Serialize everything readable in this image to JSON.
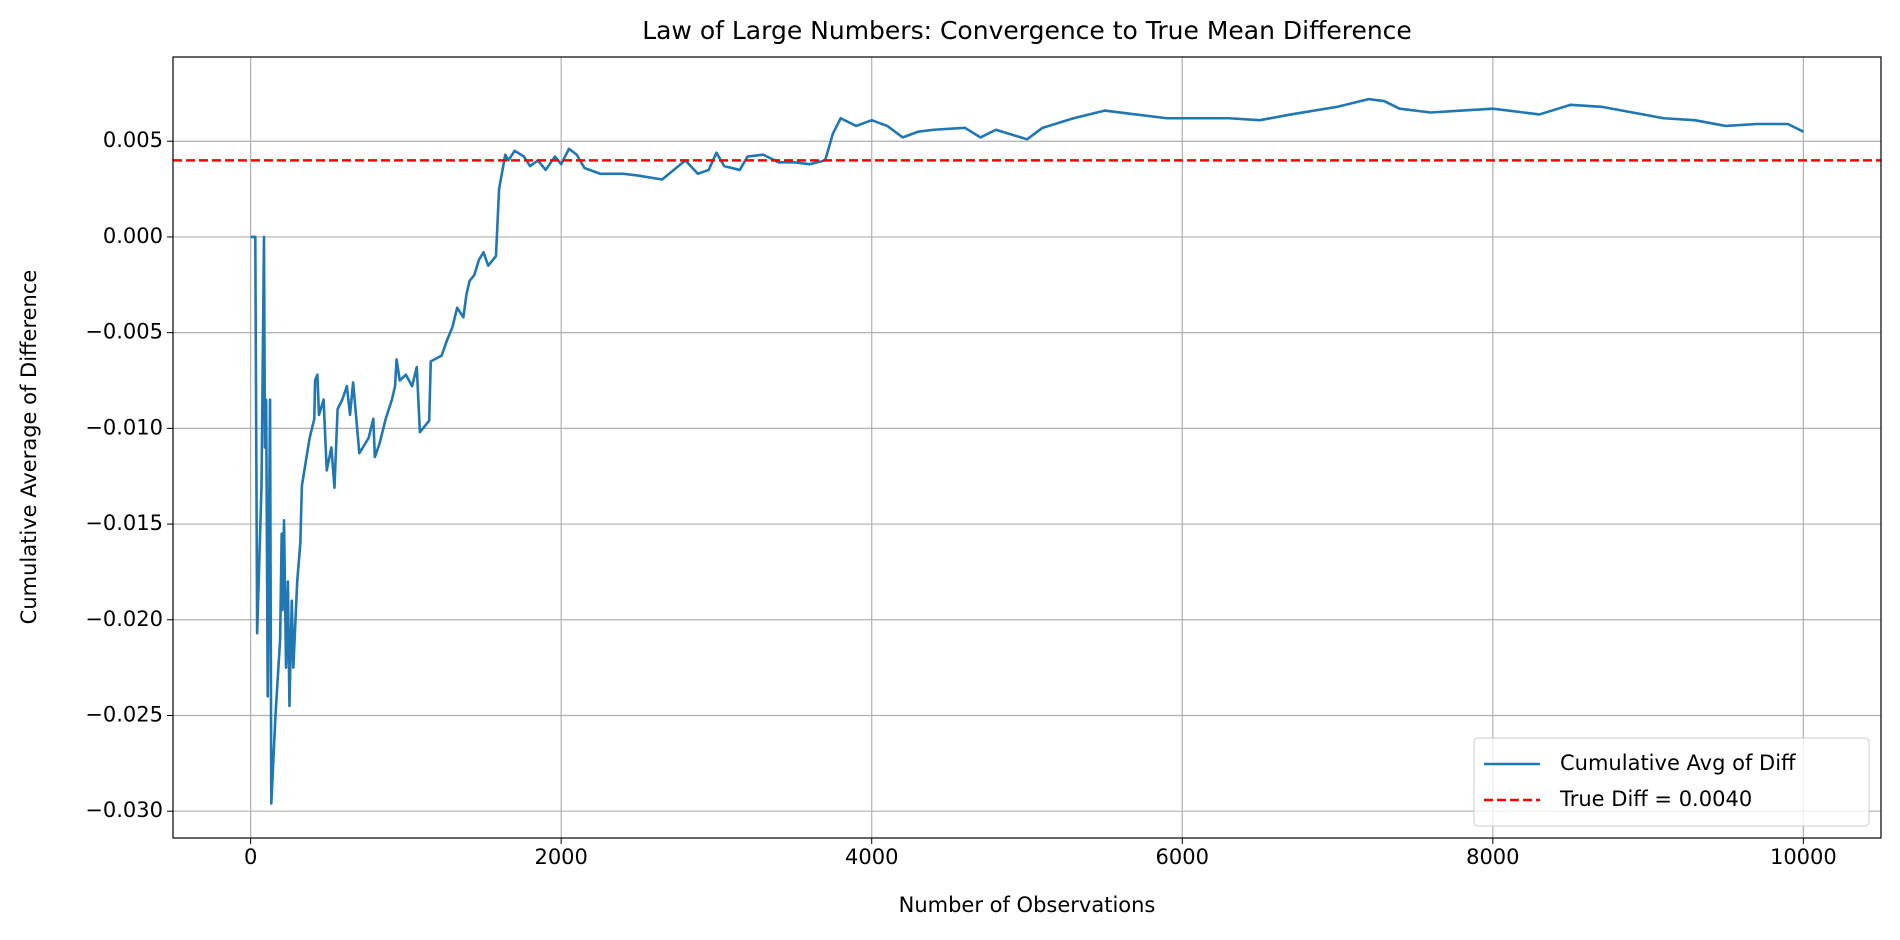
{
  "chart_data": {
    "type": "line",
    "title": "Law of Large Numbers: Convergence to True Mean Difference",
    "xlabel": "Number of Observations",
    "ylabel": "Cumulative Average of Difference",
    "xlim": [
      -500,
      10500
    ],
    "ylim": [
      -0.0314,
      0.0094
    ],
    "xticks": [
      0,
      2000,
      4000,
      6000,
      8000,
      10000
    ],
    "yticks": [
      {
        "value": -0.03,
        "label": "−0.030"
      },
      {
        "value": -0.025,
        "label": "−0.025"
      },
      {
        "value": -0.02,
        "label": "−0.020"
      },
      {
        "value": -0.015,
        "label": "−0.015"
      },
      {
        "value": -0.01,
        "label": "−0.010"
      },
      {
        "value": -0.005,
        "label": "−0.005"
      },
      {
        "value": 0,
        "label": "0.000"
      },
      0.005
    ],
    "grid": true,
    "legend": "lower right",
    "x": [
      0,
      30,
      42,
      70,
      86,
      92,
      100,
      110,
      125,
      133,
      160,
      190,
      200,
      205,
      215,
      228,
      240,
      250,
      265,
      275,
      300,
      320,
      330,
      350,
      380,
      410,
      415,
      430,
      440,
      470,
      490,
      520,
      540,
      560,
      590,
      620,
      640,
      660,
      700,
      760,
      790,
      800,
      830,
      870,
      910,
      930,
      940,
      960,
      1000,
      1040,
      1070,
      1090,
      1150,
      1160,
      1230,
      1260,
      1300,
      1330,
      1370,
      1390,
      1410,
      1440,
      1470,
      1500,
      1530,
      1580,
      1600,
      1640,
      1660,
      1700,
      1760,
      1800,
      1850,
      1900,
      1960,
      2000,
      2050,
      2100,
      2150,
      2250,
      2400,
      2500,
      2650,
      2800,
      2880,
      2950,
      3000,
      3050,
      3150,
      3200,
      3300,
      3400,
      3500,
      3600,
      3700,
      3750,
      3800,
      3900,
      4000,
      4100,
      4200,
      4300,
      4400,
      4600,
      4700,
      4800,
      5000,
      5100,
      5300,
      5500,
      5700,
      5900,
      6000,
      6300,
      6500,
      6700,
      7000,
      7200,
      7300,
      7400,
      7600,
      7800,
      8000,
      8200,
      8300,
      8500,
      8700,
      8900,
      9100,
      9300,
      9500,
      9700,
      9900,
      10000
    ],
    "series": [
      {
        "name": "Cumulative Avg of Diff",
        "color": "#1f77b4",
        "values": [
          0,
          0,
          -0.0207,
          -0.013,
          0,
          -0.011,
          -0.0085,
          -0.024,
          -0.0085,
          -0.0296,
          -0.025,
          -0.021,
          -0.0155,
          -0.0195,
          -0.0148,
          -0.0225,
          -0.018,
          -0.0245,
          -0.019,
          -0.0225,
          -0.018,
          -0.016,
          -0.013,
          -0.012,
          -0.0105,
          -0.0095,
          -0.0075,
          -0.0072,
          -0.0093,
          -0.0085,
          -0.0122,
          -0.011,
          -0.0131,
          -0.009,
          -0.0085,
          -0.0078,
          -0.0093,
          -0.0076,
          -0.0113,
          -0.0105,
          -0.0095,
          -0.0115,
          -0.0108,
          -0.0095,
          -0.0085,
          -0.0078,
          -0.0064,
          -0.0075,
          -0.0072,
          -0.0078,
          -0.0068,
          -0.0102,
          -0.0096,
          -0.0065,
          -0.0062,
          -0.0055,
          -0.0047,
          -0.0037,
          -0.0042,
          -0.003,
          -0.0023,
          -0.002,
          -0.0012,
          -0.0008,
          -0.0015,
          -0.001,
          0.0025,
          0.0043,
          0.004,
          0.0045,
          0.0042,
          0.0037,
          0.004,
          0.0035,
          0.0042,
          0.0038,
          0.0046,
          0.0043,
          0.0036,
          0.0033,
          0.0033,
          0.0032,
          0.003,
          0.004,
          0.0033,
          0.0035,
          0.0044,
          0.0037,
          0.0035,
          0.0042,
          0.0043,
          0.0039,
          0.0039,
          0.0038,
          0.004,
          0.0054,
          0.0062,
          0.0058,
          0.0061,
          0.0058,
          0.0052,
          0.0055,
          0.0056,
          0.0057,
          0.0052,
          0.0056,
          0.0051,
          0.0057,
          0.0062,
          0.0066,
          0.0064,
          0.0062,
          0.0062,
          0.0062,
          0.0061,
          0.0064,
          0.0068,
          0.0072,
          0.0071,
          0.0067,
          0.0065,
          0.0066,
          0.0067,
          0.0065,
          0.0064,
          0.0069,
          0.0068,
          0.0065,
          0.0062,
          0.0061,
          0.0058,
          0.0059,
          0.0059,
          0.0055
        ]
      }
    ],
    "hlines": [
      {
        "name": "True Diff = 0.0040",
        "y": 0.004,
        "color": "#ff0000"
      }
    ]
  }
}
